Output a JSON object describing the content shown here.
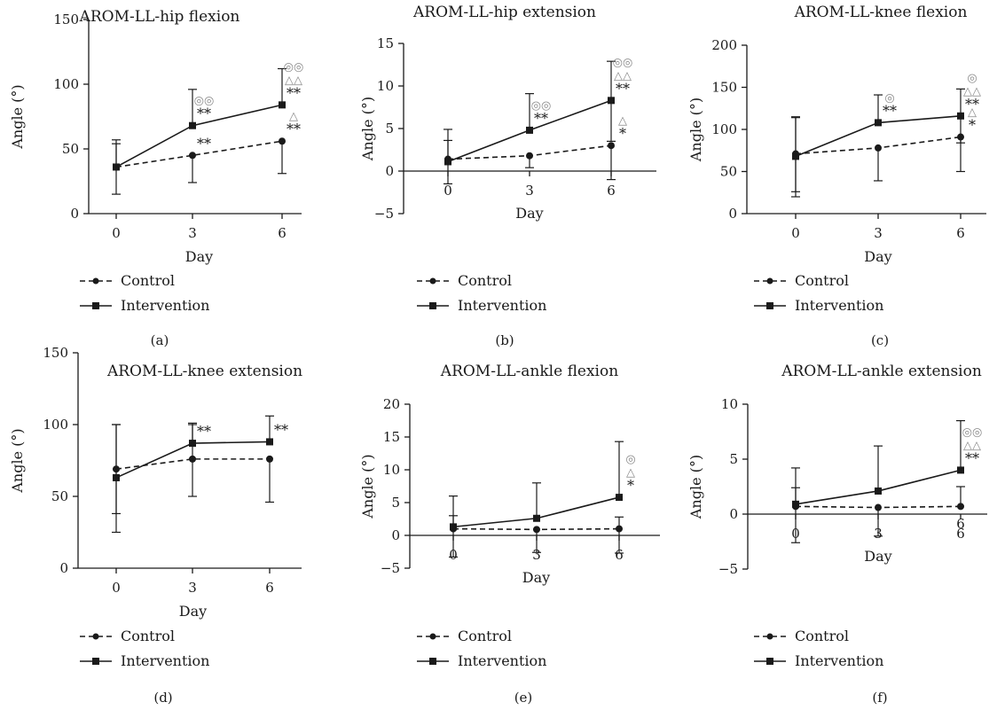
{
  "legend": {
    "control": "Control",
    "intervention": "Intervention"
  },
  "colors": {
    "line": "#1a1a1a",
    "marker_text_grey": "#8a8a8a",
    "background": "#ffffff"
  },
  "chart_data": [
    {
      "type": "line",
      "panel": "(a)",
      "title": "AROM-LL-hip flexion",
      "xlabel": "Day",
      "ylabel": "Angle (°)",
      "categories": [
        "0",
        "3",
        "6"
      ],
      "ylim": [
        0,
        150
      ],
      "yticks": [
        "0",
        "50",
        "100",
        "150"
      ],
      "series": [
        {
          "name": "Control",
          "style": "dashed-circle",
          "values": [
            36,
            45,
            56
          ],
          "err_upper": [
            54,
            0,
            0
          ],
          "err_lower": [
            0,
            24,
            31
          ]
        },
        {
          "name": "Intervention",
          "style": "solid-square",
          "values": [
            36,
            68,
            84
          ],
          "err_upper": [
            57,
            96,
            112
          ],
          "err_lower": [
            15,
            0,
            0
          ]
        }
      ],
      "annotations": [
        {
          "category": "3",
          "value": 68,
          "stars": "**",
          "marks": [
            "◎◎"
          ]
        },
        {
          "category": "3",
          "value": 45,
          "stars": "**",
          "marks": []
        },
        {
          "category": "6",
          "value": 84,
          "stars": "**",
          "marks": [
            "◎◎",
            "△△"
          ]
        },
        {
          "category": "6",
          "value": 56,
          "stars": "**",
          "marks": [
            "△"
          ]
        }
      ]
    },
    {
      "type": "line",
      "panel": "(b)",
      "title": "AROM-LL-hip extension",
      "xlabel": "Day",
      "ylabel": "Angle (°)",
      "categories": [
        "0",
        "3",
        "6"
      ],
      "ylim": [
        -5,
        15
      ],
      "yticks": [
        "−5",
        "0",
        "5",
        "10",
        "15"
      ],
      "series": [
        {
          "name": "Control",
          "style": "dashed-circle",
          "values": [
            1.4,
            1.8,
            3.0
          ],
          "err_upper": [
            3.6,
            0,
            0
          ],
          "err_lower": [
            -1.5,
            0.4,
            -1.0
          ]
        },
        {
          "name": "Intervention",
          "style": "solid-square",
          "values": [
            1.1,
            4.8,
            8.3
          ],
          "err_upper": [
            4.9,
            9.1,
            12.9
          ],
          "err_lower": [
            0,
            0,
            3.5
          ]
        }
      ],
      "annotations": [
        {
          "category": "3",
          "value": 4.8,
          "stars": "**",
          "marks": [
            "◎◎"
          ]
        },
        {
          "category": "6",
          "value": 8.3,
          "stars": "**",
          "marks": [
            "◎◎",
            "△△"
          ]
        },
        {
          "category": "6",
          "value": 3.0,
          "stars": "*",
          "marks": [
            "△"
          ]
        }
      ]
    },
    {
      "type": "line",
      "panel": "(c)",
      "title": "AROM-LL-knee flexion",
      "xlabel": "Day",
      "ylabel": "Angle (°)",
      "categories": [
        "0",
        "3",
        "6"
      ],
      "ylim": [
        0,
        200
      ],
      "yticks": [
        "0",
        "50",
        "100",
        "150",
        "200"
      ],
      "series": [
        {
          "name": "Control",
          "style": "dashed-circle",
          "values": [
            71,
            78,
            91
          ],
          "err_upper": [
            114,
            0,
            0
          ],
          "err_lower": [
            26,
            39,
            50
          ]
        },
        {
          "name": "Intervention",
          "style": "solid-square",
          "values": [
            68,
            108,
            116
          ],
          "err_upper": [
            115,
            141,
            148
          ],
          "err_lower": [
            20,
            0,
            84
          ]
        }
      ],
      "annotations": [
        {
          "category": "3",
          "value": 108,
          "stars": "**",
          "marks": [
            "◎"
          ]
        },
        {
          "category": "6",
          "value": 116,
          "stars": "**",
          "marks": [
            "◎",
            "△△"
          ]
        },
        {
          "category": "6",
          "value": 91,
          "stars": "*",
          "marks": [
            "△"
          ]
        }
      ]
    },
    {
      "type": "line",
      "panel": "(d)",
      "title": "AROM-LL-knee extension",
      "xlabel": "Day",
      "ylabel": "Angle (°)",
      "categories": [
        "0",
        "3",
        "6"
      ],
      "ylim": [
        0,
        150
      ],
      "yticks": [
        "0",
        "50",
        "100",
        "150"
      ],
      "series": [
        {
          "name": "Control",
          "style": "dashed-circle",
          "values": [
            69,
            76,
            76
          ],
          "err_upper": [
            100,
            100,
            0
          ],
          "err_lower": [
            38,
            50,
            46
          ]
        },
        {
          "name": "Intervention",
          "style": "solid-square",
          "values": [
            63,
            87,
            88
          ],
          "err_upper": [
            100,
            101,
            106
          ],
          "err_lower": [
            25,
            0,
            0
          ]
        }
      ],
      "annotations": [
        {
          "category": "3",
          "value": 87,
          "stars": "**",
          "marks": []
        },
        {
          "category": "6",
          "value": 88,
          "stars": "**",
          "marks": []
        }
      ]
    },
    {
      "type": "line",
      "panel": "(e)",
      "title": "AROM-LL-ankle flexion",
      "xlabel": "Day",
      "ylabel": "Angle (°)",
      "categories": [
        "0",
        "3",
        "6"
      ],
      "ylim": [
        -5,
        20
      ],
      "yticks": [
        "−5",
        "0",
        "5",
        "10",
        "15",
        "20"
      ],
      "series": [
        {
          "name": "Control",
          "style": "dashed-circle",
          "values": [
            1.0,
            0.9,
            1.0
          ],
          "err_upper": [
            3.0,
            0,
            2.8
          ],
          "err_lower": [
            -3.3,
            -2.6,
            -2.7
          ]
        },
        {
          "name": "Intervention",
          "style": "solid-square",
          "values": [
            1.3,
            2.6,
            5.8
          ],
          "err_upper": [
            6.0,
            8.0,
            14.3
          ],
          "err_lower": [
            0,
            0,
            0
          ]
        }
      ],
      "annotations": [
        {
          "category": "6",
          "value": 5.8,
          "stars": "*",
          "marks": [
            "◎",
            "△"
          ]
        }
      ]
    },
    {
      "type": "line",
      "panel": "(f)",
      "title": "AROM-LL-ankle extension",
      "xlabel": "Day",
      "ylabel": "Angle (°)",
      "categories": [
        "0",
        "3",
        "6"
      ],
      "ylim": [
        -5,
        10
      ],
      "yticks": [
        "−5",
        "0",
        "5",
        "10"
      ],
      "series": [
        {
          "name": "Control",
          "style": "dashed-circle",
          "values": [
            0.7,
            0.6,
            0.7
          ],
          "err_upper": [
            2.4,
            0,
            2.5
          ],
          "err_lower": [
            -2.6,
            -2.0,
            0
          ]
        },
        {
          "name": "Intervention",
          "style": "solid-square",
          "values": [
            0.9,
            2.1,
            4.0
          ],
          "err_upper": [
            4.2,
            6.2,
            8.5
          ],
          "err_lower": [
            0,
            0,
            0
          ]
        }
      ],
      "annotations": [
        {
          "category": "6",
          "value": 4.0,
          "stars": "**",
          "marks": [
            "◎◎",
            "△△"
          ]
        }
      ],
      "extra_text": "6"
    }
  ]
}
